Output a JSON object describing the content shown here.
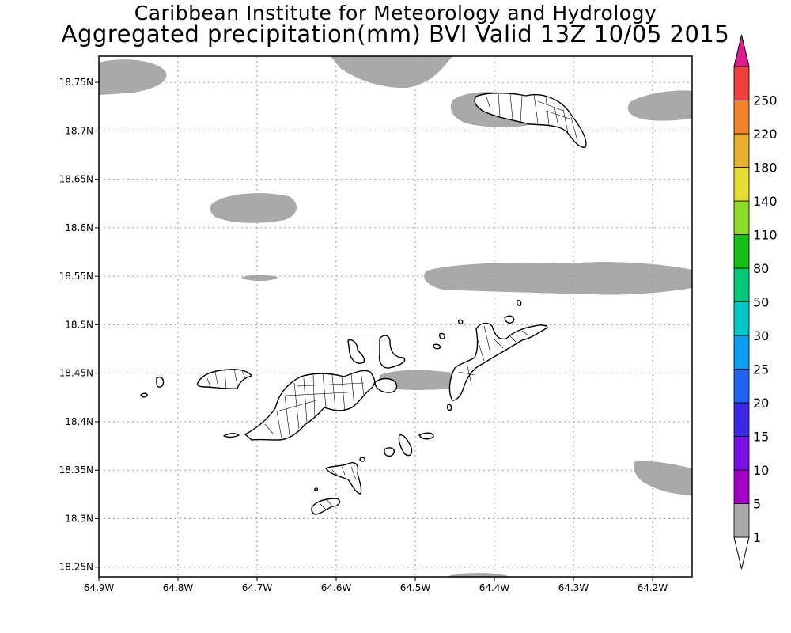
{
  "header": {
    "title_line1": "Caribbean Institute for Meteorology and Hydrology",
    "title_line2": "Aggregated precipitation(mm) BVI Valid 13Z 10/05 2015"
  },
  "map": {
    "lon_range": [
      -64.9,
      -64.15
    ],
    "lat_range": [
      18.24,
      18.777
    ],
    "grid": true,
    "precip_fill_color": "#a9a9a9",
    "y_ticks": [
      {
        "value": 18.75,
        "label": "18.75N"
      },
      {
        "value": 18.7,
        "label": "18.7N"
      },
      {
        "value": 18.65,
        "label": "18.65N"
      },
      {
        "value": 18.6,
        "label": "18.6N"
      },
      {
        "value": 18.55,
        "label": "18.55N"
      },
      {
        "value": 18.5,
        "label": "18.5N"
      },
      {
        "value": 18.45,
        "label": "18.45N"
      },
      {
        "value": 18.4,
        "label": "18.4N"
      },
      {
        "value": 18.35,
        "label": "18.35N"
      },
      {
        "value": 18.3,
        "label": "18.3N"
      },
      {
        "value": 18.25,
        "label": "18.25N"
      }
    ],
    "x_ticks": [
      {
        "value": -64.9,
        "label": "64.9W"
      },
      {
        "value": -64.8,
        "label": "64.8W"
      },
      {
        "value": -64.7,
        "label": "64.7W"
      },
      {
        "value": -64.6,
        "label": "64.6W"
      },
      {
        "value": -64.5,
        "label": "64.5W"
      },
      {
        "value": -64.4,
        "label": "64.4W"
      },
      {
        "value": -64.3,
        "label": "64.3W"
      },
      {
        "value": -64.2,
        "label": "64.2W"
      }
    ]
  },
  "colorbar": {
    "levels": [
      {
        "label": "1",
        "color": "#a9a9a9"
      },
      {
        "label": "5",
        "color": "#a300c8"
      },
      {
        "label": "10",
        "color": "#7b10e6"
      },
      {
        "label": "15",
        "color": "#3c28e6"
      },
      {
        "label": "20",
        "color": "#1e64f0"
      },
      {
        "label": "25",
        "color": "#0a9ef0"
      },
      {
        "label": "30",
        "color": "#00c8c8"
      },
      {
        "label": "50",
        "color": "#00c878"
      },
      {
        "label": "80",
        "color": "#14be14"
      },
      {
        "label": "110",
        "color": "#8cdc28"
      },
      {
        "label": "140",
        "color": "#e6dc32"
      },
      {
        "label": "180",
        "color": "#e6af2d"
      },
      {
        "label": "220",
        "color": "#f08228"
      },
      {
        "label": "250",
        "color": "#f03c3c"
      }
    ],
    "top_color": "#dc1e8c"
  }
}
